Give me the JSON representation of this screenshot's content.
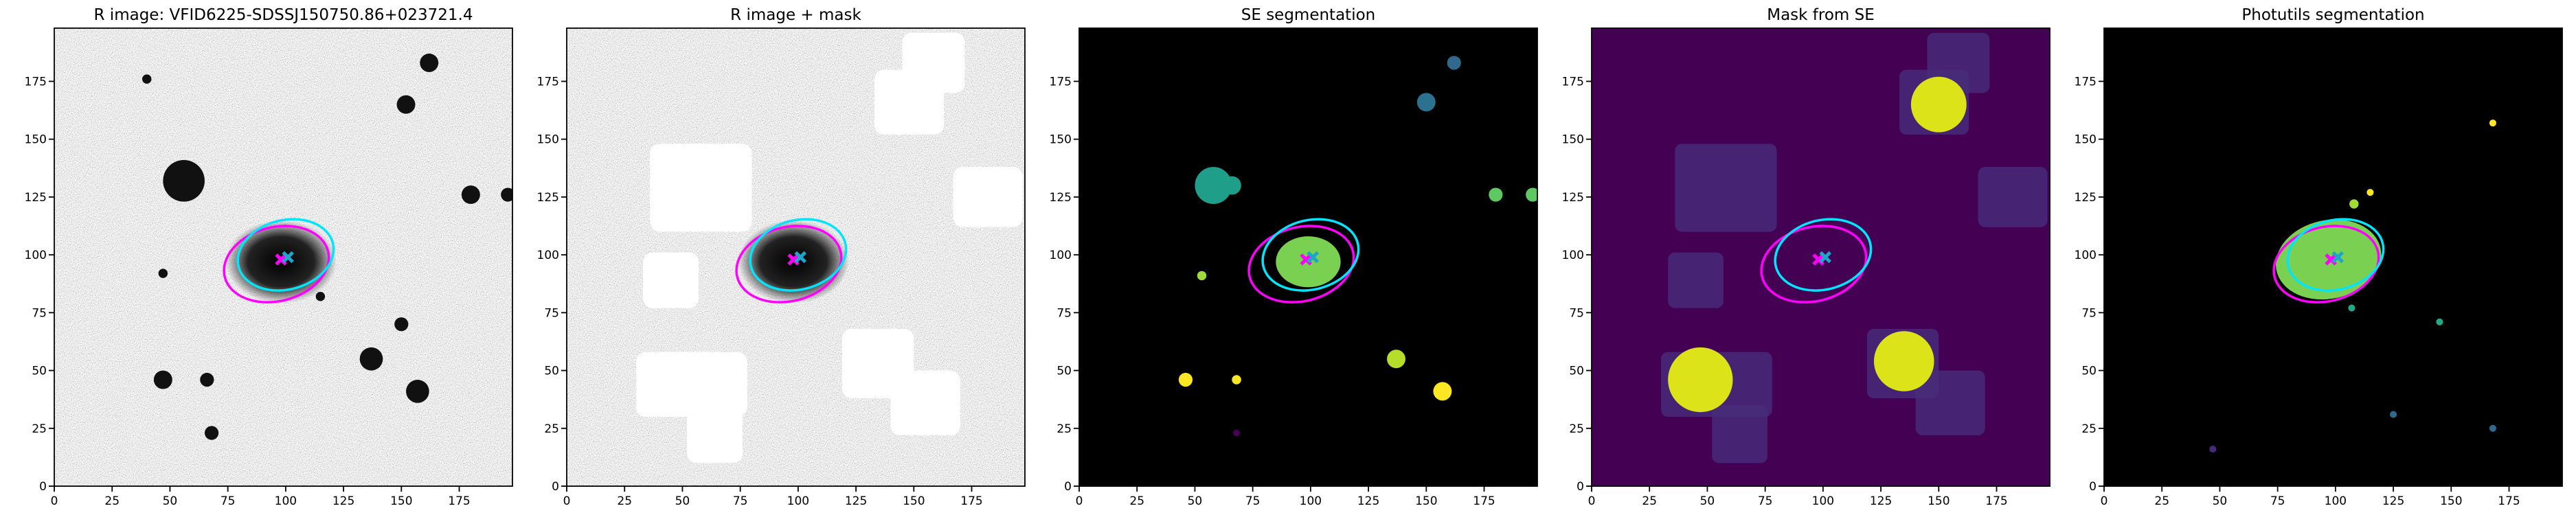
{
  "chart_data": [
    {
      "type": "image",
      "title": "R image: VFID6225-SDSSJ150750.86+023721.4",
      "background": "gray-noise",
      "xlim": [
        0,
        198
      ],
      "ylim": [
        0,
        198
      ],
      "xticks": [
        0,
        25,
        50,
        75,
        100,
        125,
        150,
        175
      ],
      "yticks": [
        0,
        25,
        50,
        75,
        100,
        125,
        150,
        175
      ]
    },
    {
      "type": "image",
      "title": "R image + mask",
      "background": "gray-noise",
      "xlim": [
        0,
        198
      ],
      "ylim": [
        0,
        198
      ],
      "xticks": [
        0,
        25,
        50,
        75,
        100,
        125,
        150,
        175
      ],
      "yticks": [
        0,
        25,
        50,
        75,
        100,
        125,
        150,
        175
      ]
    },
    {
      "type": "image",
      "title": "SE segmentation",
      "background": "#000000",
      "xlim": [
        0,
        198
      ],
      "ylim": [
        0,
        198
      ],
      "xticks": [
        0,
        25,
        50,
        75,
        100,
        125,
        150,
        175
      ],
      "yticks": [
        0,
        25,
        50,
        75,
        100,
        125,
        150,
        175
      ]
    },
    {
      "type": "image",
      "title": "Mask from SE",
      "background": "#440154",
      "xlim": [
        0,
        198
      ],
      "ylim": [
        0,
        198
      ],
      "xticks": [
        0,
        25,
        50,
        75,
        100,
        125,
        150,
        175
      ],
      "yticks": [
        0,
        25,
        50,
        75,
        100,
        125,
        150,
        175
      ]
    },
    {
      "type": "image",
      "title": "Photutils segmentation",
      "background": "#000000",
      "xlim": [
        0,
        198
      ],
      "ylim": [
        0,
        198
      ],
      "xticks": [
        0,
        25,
        50,
        75,
        100,
        125,
        150,
        175
      ],
      "yticks": [
        0,
        25,
        50,
        75,
        100,
        125,
        150,
        175
      ]
    }
  ]
}
